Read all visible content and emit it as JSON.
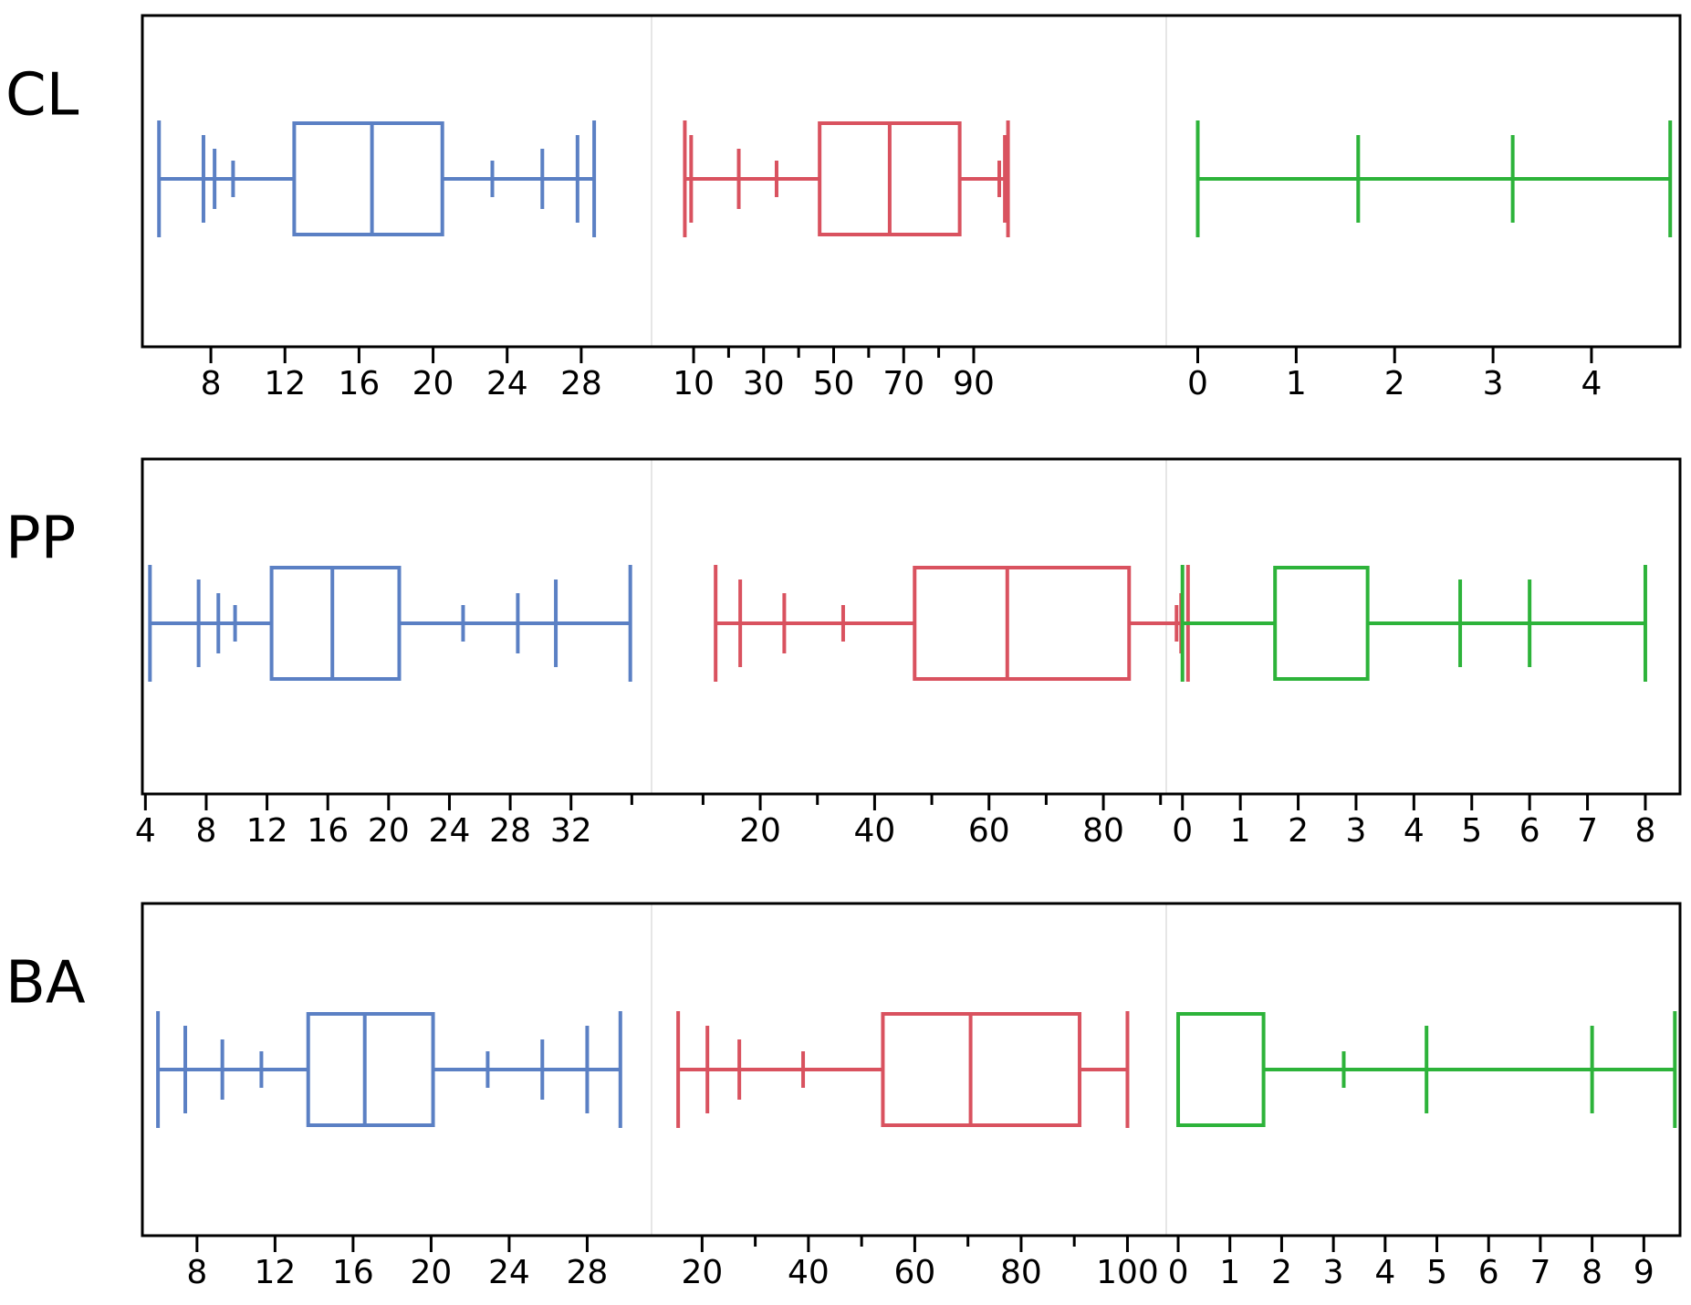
{
  "colors": {
    "blue": "#5b80c4",
    "red": "#d9525f",
    "green": "#2db33a",
    "frame": "#000000",
    "divider": "#e6e6e6"
  },
  "chart_data": [
    {
      "type": "boxplot",
      "row_label": "CL",
      "segments": [
        {
          "color": "blue",
          "xlim": [
            4.3,
            31.8
          ],
          "ticks": [
            8,
            12,
            16,
            20,
            24,
            28
          ],
          "tick_labels": [
            "8",
            "12",
            "16",
            "20",
            "24",
            "28"
          ],
          "minor_ticks": [],
          "box": {
            "q1": 12.5,
            "median": 16.7,
            "q3": 20.5
          },
          "whisker": [
            5.2,
            28.7
          ],
          "markers": [
            {
              "x": 5.2,
              "size": "large"
            },
            {
              "x": 7.6,
              "size": "medium"
            },
            {
              "x": 8.2,
              "size": "small"
            },
            {
              "x": 9.2,
              "size": "tiny"
            },
            {
              "x": 23.2,
              "size": "tiny"
            },
            {
              "x": 25.9,
              "size": "small"
            },
            {
              "x": 27.8,
              "size": "medium"
            },
            {
              "x": 28.7,
              "size": "large"
            }
          ]
        },
        {
          "color": "red",
          "xlim": [
            -2,
            145
          ],
          "ticks": [
            10,
            30,
            50,
            70,
            90
          ],
          "tick_labels": [
            "10",
            "30",
            "50",
            "70",
            "90"
          ],
          "minor_ticks": [
            20,
            40,
            60,
            80
          ],
          "box": {
            "q1": 46,
            "median": 66,
            "q3": 86
          },
          "whisker": [
            7.5,
            99.8
          ],
          "markers": [
            {
              "x": 7.5,
              "size": "large"
            },
            {
              "x": 9.3,
              "size": "medium"
            },
            {
              "x": 22.9,
              "size": "small"
            },
            {
              "x": 33.7,
              "size": "tiny"
            },
            {
              "x": 97.3,
              "size": "tiny"
            },
            {
              "x": 98.9,
              "size": "medium"
            },
            {
              "x": 99.8,
              "size": "large"
            }
          ]
        },
        {
          "color": "green",
          "xlim": [
            -0.32,
            4.9
          ],
          "ticks": [
            0,
            1,
            2,
            3,
            4
          ],
          "tick_labels": [
            "0",
            "1",
            "2",
            "3",
            "4"
          ],
          "minor_ticks": [],
          "box": null,
          "whisker": [
            0,
            4.8
          ],
          "markers": [
            {
              "x": 0,
              "size": "large"
            },
            {
              "x": 1.63,
              "size": "medium"
            },
            {
              "x": 3.2,
              "size": "medium"
            },
            {
              "x": 4.8,
              "size": "large"
            }
          ]
        }
      ]
    },
    {
      "type": "boxplot",
      "row_label": "PP",
      "segments": [
        {
          "color": "blue",
          "xlim": [
            3.8,
            37.3
          ],
          "ticks": [
            4,
            8,
            12,
            16,
            20,
            24,
            28,
            32
          ],
          "tick_labels": [
            "4",
            "8",
            "12",
            "16",
            "20",
            "24",
            "28",
            "32"
          ],
          "minor_ticks": [
            36
          ],
          "box": {
            "q1": 12.3,
            "median": 16.3,
            "q3": 20.7
          },
          "whisker": [
            4.3,
            35.9
          ],
          "markers": [
            {
              "x": 4.3,
              "size": "large"
            },
            {
              "x": 7.5,
              "size": "medium"
            },
            {
              "x": 8.8,
              "size": "small"
            },
            {
              "x": 9.9,
              "size": "tiny"
            },
            {
              "x": 24.9,
              "size": "tiny"
            },
            {
              "x": 28.5,
              "size": "small"
            },
            {
              "x": 31.0,
              "size": "medium"
            },
            {
              "x": 35.9,
              "size": "large"
            }
          ]
        },
        {
          "color": "red",
          "xlim": [
            1,
            91
          ],
          "ticks": [
            20,
            40,
            60,
            80
          ],
          "tick_labels": [
            "20",
            "40",
            "60",
            "80"
          ],
          "minor_ticks": [
            10,
            30,
            50,
            70,
            90
          ],
          "box": {
            "q1": 47,
            "median": 63.2,
            "q3": 84.5
          },
          "whisker": [
            12.2,
            94.8
          ],
          "markers": [
            {
              "x": 12.2,
              "size": "large"
            },
            {
              "x": 16.5,
              "size": "medium"
            },
            {
              "x": 24.2,
              "size": "small"
            },
            {
              "x": 34.5,
              "size": "tiny"
            },
            {
              "x": 92.8,
              "size": "tiny"
            },
            {
              "x": 93.6,
              "size": "small"
            },
            {
              "x": 94.8,
              "size": "large"
            }
          ]
        },
        {
          "color": "green",
          "xlim": [
            -0.28,
            8.6
          ],
          "ticks": [
            0,
            1,
            2,
            3,
            4,
            5,
            6,
            7,
            8
          ],
          "tick_labels": [
            "0",
            "1",
            "2",
            "3",
            "4",
            "5",
            "6",
            "7",
            "8"
          ],
          "minor_ticks": [],
          "box": {
            "q1": 1.6,
            "median": null,
            "q3": 3.2
          },
          "whisker": [
            0,
            8.0
          ],
          "markers": [
            {
              "x": 0,
              "size": "large"
            },
            {
              "x": 4.8,
              "size": "medium"
            },
            {
              "x": 6.0,
              "size": "medium"
            },
            {
              "x": 8.0,
              "size": "large"
            }
          ]
        }
      ]
    },
    {
      "type": "boxplot",
      "row_label": "BA",
      "segments": [
        {
          "color": "blue",
          "xlim": [
            5.2,
            31.3
          ],
          "ticks": [
            8,
            12,
            16,
            20,
            24,
            28
          ],
          "tick_labels": [
            "8",
            "12",
            "16",
            "20",
            "24",
            "28"
          ],
          "minor_ticks": [],
          "box": {
            "q1": 13.7,
            "median": 16.6,
            "q3": 20.1
          },
          "whisker": [
            6.0,
            29.7
          ],
          "markers": [
            {
              "x": 6.0,
              "size": "large"
            },
            {
              "x": 7.4,
              "size": "medium"
            },
            {
              "x": 9.3,
              "size": "small"
            },
            {
              "x": 11.3,
              "size": "tiny"
            },
            {
              "x": 22.9,
              "size": "tiny"
            },
            {
              "x": 25.7,
              "size": "small"
            },
            {
              "x": 28.0,
              "size": "medium"
            },
            {
              "x": 29.7,
              "size": "large"
            }
          ]
        },
        {
          "color": "red",
          "xlim": [
            10.5,
            107.3
          ],
          "ticks": [
            20,
            40,
            60,
            80,
            100
          ],
          "tick_labels": [
            "20",
            "40",
            "60",
            "80",
            "100"
          ],
          "minor_ticks": [
            30,
            50,
            70,
            90
          ],
          "box": {
            "q1": 54,
            "median": 70.5,
            "q3": 91
          },
          "whisker": [
            15.5,
            100
          ],
          "markers": [
            {
              "x": 15.5,
              "size": "large"
            },
            {
              "x": 21.0,
              "size": "medium"
            },
            {
              "x": 27.0,
              "size": "small"
            },
            {
              "x": 39.0,
              "size": "tiny"
            },
            {
              "x": 100,
              "size": "large"
            }
          ]
        },
        {
          "color": "green",
          "xlim": [
            -0.23,
            9.7
          ],
          "ticks": [
            0,
            1,
            2,
            3,
            4,
            5,
            6,
            7,
            8,
            9
          ],
          "tick_labels": [
            "0",
            "1",
            "2",
            "3",
            "4",
            "5",
            "6",
            "7",
            "8",
            "9"
          ],
          "minor_ticks": [],
          "box": {
            "q1": 0,
            "median": null,
            "q3": 1.65
          },
          "whisker": [
            0,
            9.6
          ],
          "markers": [
            {
              "x": 3.2,
              "size": "tiny"
            },
            {
              "x": 4.8,
              "size": "medium"
            },
            {
              "x": 8.0,
              "size": "medium"
            },
            {
              "x": 9.6,
              "size": "large"
            }
          ]
        }
      ]
    }
  ]
}
